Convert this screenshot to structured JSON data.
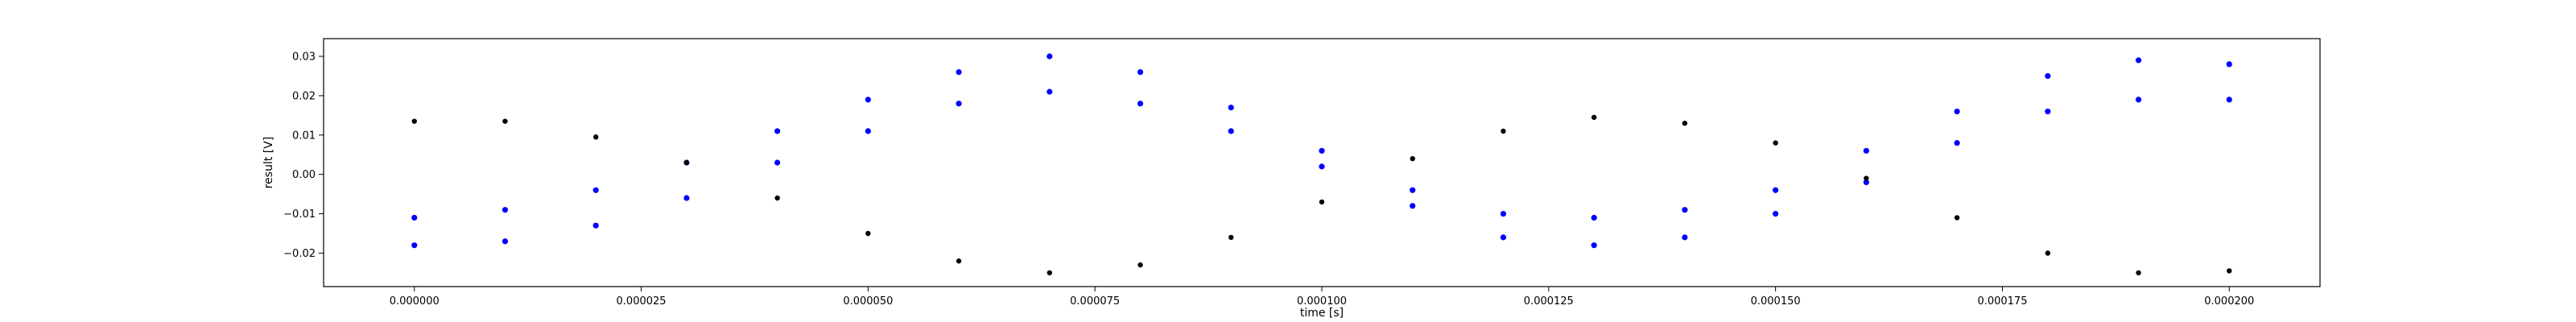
{
  "chart_data": {
    "type": "scatter",
    "title": "",
    "xlabel": "time [s]",
    "ylabel": "result [V]",
    "xlim": [
      -1e-05,
      0.00021
    ],
    "ylim": [
      -0.0285,
      0.0345
    ],
    "grid": false,
    "x_ticks": [
      0.0,
      2.5e-05,
      5e-05,
      7.5e-05,
      0.0001,
      0.000125,
      0.00015,
      0.000175,
      0.0002
    ],
    "x_tick_labels": [
      "0.000000",
      "0.000025",
      "0.000050",
      "0.000075",
      "0.000100",
      "0.000125",
      "0.000150",
      "0.000175",
      "0.000200"
    ],
    "y_ticks": [
      -0.02,
      -0.01,
      0.0,
      0.01,
      0.02,
      0.03
    ],
    "y_tick_labels": [
      "−0.02",
      "−0.01",
      "0.00",
      "0.01",
      "0.02",
      "0.03"
    ],
    "series": [
      {
        "color": "#0000ff",
        "marker": "dot",
        "x": [
          0.0,
          1e-05,
          2e-05,
          3e-05,
          4e-05,
          5e-05,
          6e-05,
          7e-05,
          8e-05,
          9e-05,
          0.0001,
          0.00011,
          0.00012,
          0.00013,
          0.00014,
          0.00015,
          0.00016,
          0.00017,
          0.00018,
          0.00019,
          0.0002
        ],
        "y": [
          -0.018,
          -0.017,
          -0.013,
          -0.006,
          0.003,
          0.011,
          0.018,
          0.021,
          0.018,
          0.011,
          0.002,
          -0.008,
          -0.016,
          -0.018,
          -0.016,
          -0.01,
          -0.002,
          0.008,
          0.016,
          0.019,
          0.019
        ]
      },
      {
        "color": "#0000ff",
        "marker": "dot",
        "x": [
          0.0,
          1e-05,
          2e-05,
          3e-05,
          4e-05,
          5e-05,
          6e-05,
          7e-05,
          8e-05,
          9e-05,
          0.0001,
          0.00011,
          0.00012,
          0.00013,
          0.00014,
          0.00015,
          0.00016,
          0.00017,
          0.00018,
          0.00019,
          0.0002
        ],
        "y": [
          -0.011,
          -0.009,
          -0.004,
          0.003,
          0.011,
          0.019,
          0.026,
          0.03,
          0.026,
          0.017,
          0.006,
          -0.004,
          -0.01,
          -0.011,
          -0.009,
          -0.004,
          0.006,
          0.016,
          0.025,
          0.029,
          0.028
        ]
      },
      {
        "color": "#000000",
        "marker": "dot",
        "x": [
          0.0,
          1e-05,
          2e-05,
          3e-05,
          4e-05,
          5e-05,
          6e-05,
          7e-05,
          8e-05,
          9e-05,
          0.0001,
          0.00011,
          0.00012,
          0.00013,
          0.00014,
          0.00015,
          0.00016,
          0.00017,
          0.00018,
          0.00019,
          0.0002
        ],
        "y": [
          0.0135,
          0.0135,
          0.0095,
          0.003,
          -0.006,
          -0.015,
          -0.022,
          -0.025,
          -0.023,
          -0.016,
          -0.007,
          0.004,
          0.011,
          0.0145,
          0.013,
          0.008,
          -0.001,
          -0.011,
          -0.02,
          -0.025,
          -0.0245
        ]
      }
    ]
  }
}
